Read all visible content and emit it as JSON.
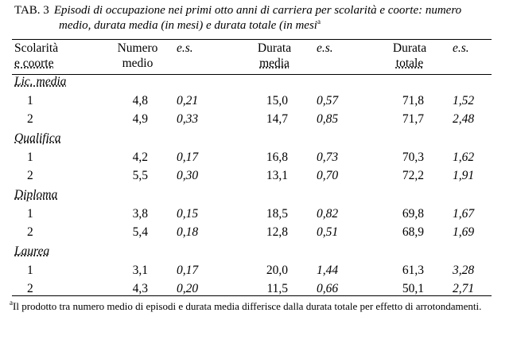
{
  "caption": {
    "label": "TAB. 3",
    "title": "Episodi di occupazione nei primi otto anni di carriera per scolarità e coorte: numero medio, durata media (in mesi) e durata totale (in mesi",
    "note_ref": "a"
  },
  "table": {
    "header": [
      [
        "Scolarità",
        "e coorte"
      ],
      [
        "Numero",
        "medio"
      ],
      [
        "e.s."
      ],
      [
        "Durata",
        "media"
      ],
      [
        "e.s."
      ],
      [
        "Durata",
        "totale"
      ],
      [
        "e.s."
      ]
    ],
    "groups": [
      {
        "name": "Lic. media",
        "rows": [
          [
            "1",
            "4,8",
            "0,21",
            "15,0",
            "0,57",
            "71,8",
            "1,52"
          ],
          [
            "2",
            "4,9",
            "0,33",
            "14,7",
            "0,85",
            "71,7",
            "2,48"
          ]
        ]
      },
      {
        "name": "Qualifica",
        "rows": [
          [
            "1",
            "4,2",
            "0,17",
            "16,8",
            "0,73",
            "70,3",
            "1,62"
          ],
          [
            "2",
            "5,5",
            "0,30",
            "13,1",
            "0,70",
            "72,2",
            "1,91"
          ]
        ]
      },
      {
        "name": "Diploma",
        "rows": [
          [
            "1",
            "3,8",
            "0,15",
            "18,5",
            "0,82",
            "69,8",
            "1,67"
          ],
          [
            "2",
            "5,4",
            "0,18",
            "12,8",
            "0,51",
            "68,9",
            "1,69"
          ]
        ]
      },
      {
        "name": "Laurea",
        "rows": [
          [
            "1",
            "3,1",
            "0,17",
            "20,0",
            "1,44",
            "61,3",
            "3,28"
          ],
          [
            "2",
            "4,3",
            "0,20",
            "11,5",
            "0,66",
            "50,1",
            "2,71"
          ]
        ]
      }
    ]
  },
  "footnote": {
    "ref": "a",
    "text": "Il prodotto tra numero medio di episodi e durata media differisce dalla durata totale per effetto di arrotondamenti."
  }
}
